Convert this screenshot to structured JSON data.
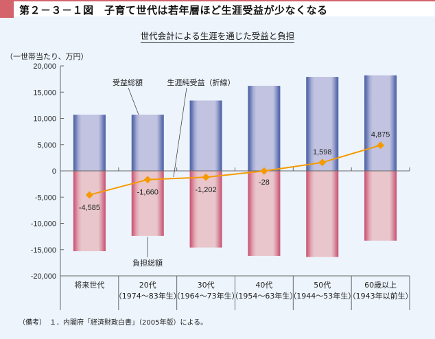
{
  "header": {
    "title": "第２－３－１図　子育て世代は若年層ほど生涯受益が少なくなる",
    "accent_color": "#d4636b"
  },
  "chart_data": {
    "type": "bar",
    "title": "世代会計による生涯を通じた受益と負担",
    "ylabel": "（一世帯当たり、万円）",
    "xlabel": "",
    "ylim": [
      -20000,
      20000
    ],
    "yticks": [
      20000,
      15000,
      10000,
      5000,
      0,
      -5000,
      -10000,
      -15000,
      -20000
    ],
    "ytick_labels": [
      "20,000",
      "15,000",
      "10,000",
      "5,000",
      "0",
      "-5,000",
      "-10,000",
      "-15,000",
      "-20,000"
    ],
    "categories": [
      {
        "name": "将来世代",
        "sub": ""
      },
      {
        "name": "20代",
        "sub": "（1974～83年生）"
      },
      {
        "name": "30代",
        "sub": "（1964～73年生）"
      },
      {
        "name": "40代",
        "sub": "（1954～63年生）"
      },
      {
        "name": "50代",
        "sub": "（1944～53年生）"
      },
      {
        "name": "60歳以上",
        "sub": "（1943年以前生）"
      }
    ],
    "series": [
      {
        "name": "受益総額",
        "type": "bar",
        "color": "#c1c3e0",
        "edge_color": "#4d62a4",
        "values": [
          10700,
          10700,
          13400,
          16200,
          17900,
          18200
        ]
      },
      {
        "name": "負担総額",
        "type": "bar",
        "color": "#e8c6cb",
        "edge_color": "#c9506f",
        "values": [
          -15300,
          -12400,
          -14600,
          -16200,
          -16400,
          -13300
        ]
      },
      {
        "name": "生涯純受益（折線）",
        "type": "line",
        "color": "#f59a00",
        "values": [
          -4585,
          -1660,
          -1202,
          -28,
          1598,
          4875
        ],
        "labels": [
          "-4,585",
          "-1,660",
          "-1,202",
          "-28",
          "1,598",
          "4,875"
        ]
      }
    ],
    "annotations": [
      "受益総額",
      "生涯純受益（折線）",
      "負担総額"
    ],
    "grid": false,
    "legend": "none"
  },
  "footnote": "（備考）　１．内閣府「経済財政白書」（2005年版）による。"
}
